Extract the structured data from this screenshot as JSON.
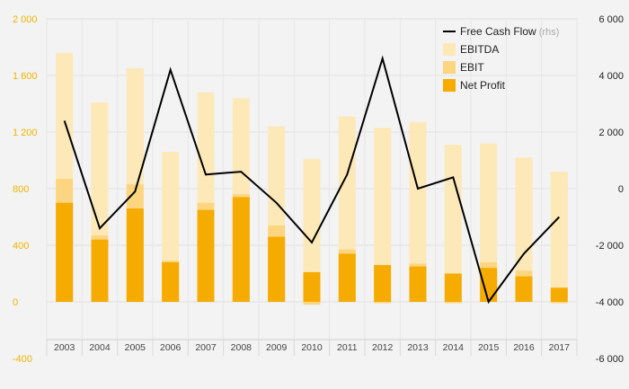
{
  "chart_data": {
    "type": "bar",
    "subtype": "stacked-bar-with-line",
    "categories": [
      "2003",
      "2004",
      "2005",
      "2006",
      "2007",
      "2008",
      "2009",
      "2010",
      "2011",
      "2012",
      "2013",
      "2014",
      "2015",
      "2016",
      "2017"
    ],
    "series": [
      {
        "name": "EBITDA",
        "axis": "left",
        "color": "#fde8b8",
        "values": [
          1760,
          1410,
          1650,
          1060,
          1480,
          1440,
          1240,
          1010,
          1310,
          1230,
          1270,
          1110,
          1120,
          1020,
          920
        ]
      },
      {
        "name": "EBIT",
        "axis": "left",
        "color": "#fcd581",
        "values": [
          870,
          470,
          830,
          290,
          700,
          760,
          540,
          -20,
          370,
          -10,
          270,
          -10,
          280,
          220,
          -10
        ]
      },
      {
        "name": "Net Profit",
        "axis": "left",
        "color": "#f5ab00",
        "values": [
          700,
          440,
          660,
          280,
          650,
          740,
          460,
          210,
          340,
          260,
          250,
          200,
          240,
          180,
          100
        ]
      },
      {
        "name": "Free Cash Flow",
        "name_suffix": "(rhs)",
        "axis": "right",
        "type": "line",
        "color": "#000000",
        "values": [
          2400,
          -1400,
          -100,
          4200,
          500,
          600,
          -500,
          -1900,
          500,
          4600,
          0,
          400,
          -4000,
          -2300,
          -1000
        ]
      }
    ],
    "y_left": {
      "lim": [
        -400,
        2000
      ],
      "ticks": [
        -400,
        0,
        400,
        800,
        1200,
        1600,
        2000
      ],
      "tick_labels": [
        "-400",
        "0",
        "400",
        "800",
        "1 200",
        "1 600",
        "2 000"
      ]
    },
    "y_right": {
      "lim": [
        -6000,
        6000
      ],
      "ticks": [
        -6000,
        -4000,
        -2000,
        0,
        2000,
        4000,
        6000
      ],
      "tick_labels": [
        "-6 000",
        "-4 000",
        "-2 000",
        "0",
        "2 000",
        "4 000",
        "6 000"
      ]
    },
    "grid": true,
    "legend_position": "top-right"
  },
  "colors": {
    "accent": "#f0b400",
    "background": "#f3f3f3"
  }
}
